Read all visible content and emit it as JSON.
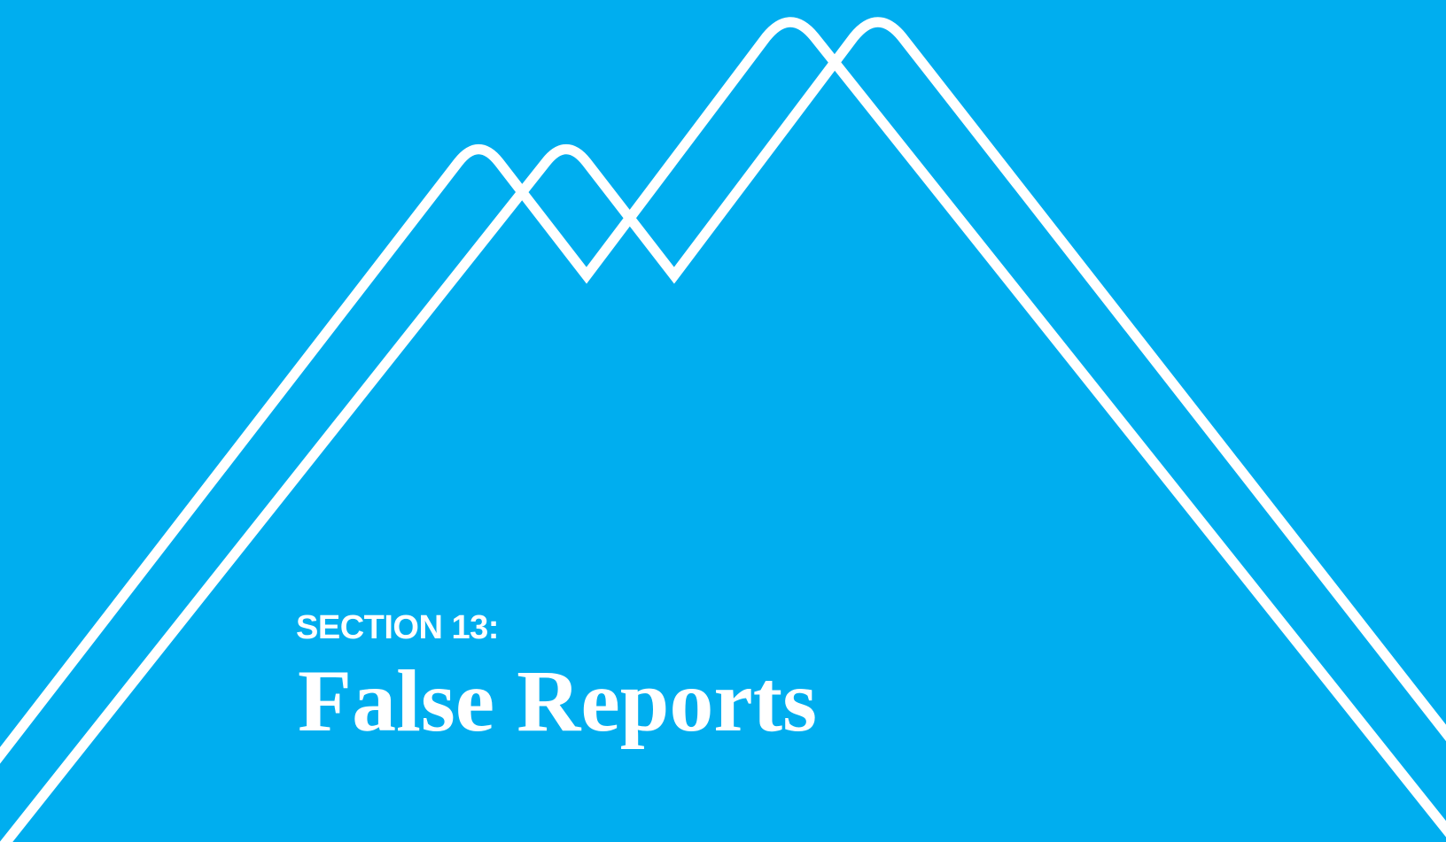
{
  "section_label": "SECTION 13:",
  "title": "False Reports"
}
